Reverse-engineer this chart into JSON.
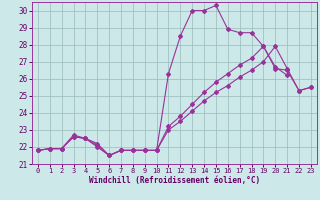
{
  "xlabel": "Windchill (Refroidissement éolien,°C)",
  "bg_color": "#cce8e8",
  "line_color": "#993399",
  "grid_color": "#99bbbb",
  "text_color": "#660066",
  "spine_color": "#993399",
  "xlim": [
    -0.5,
    23.5
  ],
  "ylim": [
    21,
    30.5
  ],
  "xticks": [
    0,
    1,
    2,
    3,
    4,
    5,
    6,
    7,
    8,
    9,
    10,
    11,
    12,
    13,
    14,
    15,
    16,
    17,
    18,
    19,
    20,
    21,
    22,
    23
  ],
  "yticks": [
    21,
    22,
    23,
    24,
    25,
    26,
    27,
    28,
    29,
    30
  ],
  "line1_x": [
    0,
    1,
    2,
    3,
    4,
    5,
    6,
    7,
    8,
    9,
    10,
    11,
    12,
    13,
    14,
    15,
    16,
    17,
    18,
    19,
    20,
    21
  ],
  "line1_y": [
    21.8,
    21.9,
    21.9,
    22.6,
    22.5,
    22.2,
    21.5,
    21.8,
    21.8,
    21.8,
    21.8,
    26.3,
    28.5,
    30.0,
    30.0,
    30.3,
    28.9,
    28.7,
    28.7,
    27.9,
    26.7,
    26.2
  ],
  "line2_x": [
    0,
    1,
    2,
    3,
    4,
    5,
    6,
    7,
    8,
    9,
    10,
    11,
    12,
    13,
    14,
    15,
    16,
    17,
    18,
    19,
    20,
    21,
    22,
    23
  ],
  "line2_y": [
    21.8,
    21.9,
    21.9,
    22.7,
    22.5,
    22.0,
    21.5,
    21.8,
    21.8,
    21.8,
    21.8,
    23.2,
    23.8,
    24.5,
    25.2,
    25.8,
    26.3,
    26.8,
    27.2,
    27.9,
    26.6,
    26.5,
    25.3,
    25.5
  ],
  "line3_x": [
    0,
    1,
    2,
    3,
    4,
    5,
    6,
    7,
    8,
    9,
    10,
    11,
    12,
    13,
    14,
    15,
    16,
    17,
    18,
    19,
    20,
    21,
    22,
    23
  ],
  "line3_y": [
    21.8,
    21.9,
    21.9,
    22.6,
    22.5,
    22.1,
    21.5,
    21.8,
    21.8,
    21.8,
    21.8,
    23.0,
    23.5,
    24.1,
    24.7,
    25.2,
    25.6,
    26.1,
    26.5,
    27.0,
    27.9,
    26.6,
    25.3,
    25.5
  ]
}
